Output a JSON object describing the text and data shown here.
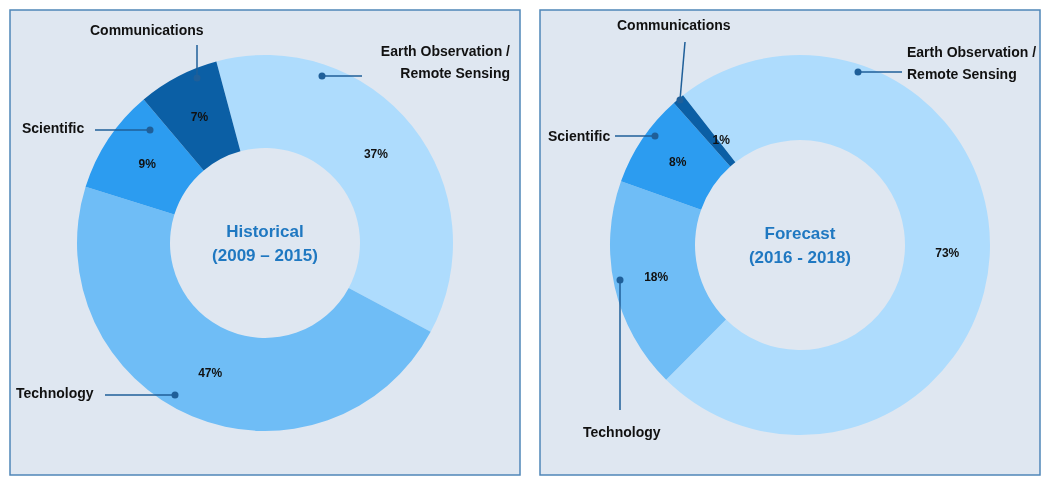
{
  "chart_data": [
    {
      "type": "donut",
      "title": "Historical (2009 – 2015)",
      "categories": [
        "Earth Observation / Remote Sensing",
        "Technology",
        "Scientific",
        "Communications"
      ],
      "values": [
        37,
        47,
        9,
        7
      ],
      "colors": [
        "#aedcfd",
        "#6fbdf6",
        "#2c9cf0",
        "#0b5fa5"
      ],
      "value_labels": [
        "37%",
        "47%",
        "9%",
        "7%"
      ]
    },
    {
      "type": "donut",
      "title": "Forecast (2016 - 2018)",
      "categories": [
        "Earth Observation / Remote Sensing",
        "Technology",
        "Scientific",
        "Communications"
      ],
      "values": [
        73,
        18,
        8,
        1
      ],
      "colors": [
        "#aedcfd",
        "#6fbdf6",
        "#2c9cf0",
        "#0b5fa5"
      ],
      "value_labels": [
        "73%",
        "18%",
        "8%",
        "1%"
      ]
    }
  ]
}
